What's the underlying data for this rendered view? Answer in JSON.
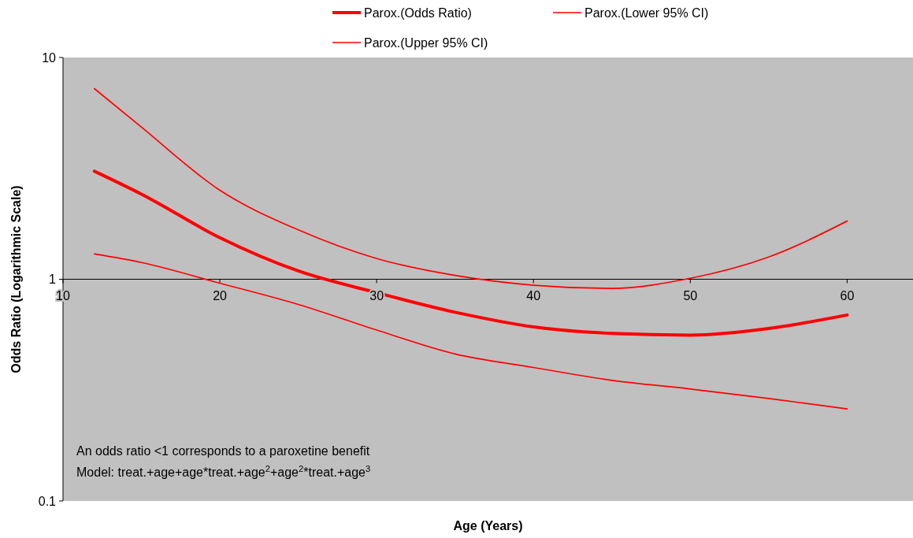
{
  "chart_data": {
    "type": "line",
    "xlabel": "Age (Years)",
    "ylabel": "Odds Ratio (Logarithmic Scale)",
    "log": "y",
    "grid": false,
    "legend": "top",
    "line_style": "solid",
    "xlim": [
      10,
      64.2
    ],
    "xticks": [
      10,
      20,
      30,
      40,
      50,
      60
    ],
    "ylim": [
      0.1,
      10
    ],
    "yticks": [
      0.1,
      1,
      10
    ],
    "x": [
      12,
      15,
      20,
      25,
      30,
      35,
      40,
      45,
      50,
      55,
      60
    ],
    "series": [
      {
        "name": "Parox.(Odds Ratio)",
        "color": "#ff0000",
        "values": [
          3.07,
          2.42,
          1.54,
          1.09,
          0.87,
          0.71,
          0.61,
          0.57,
          0.56,
          0.6,
          0.69
        ]
      },
      {
        "name": "Parox.(Lower 95% CI)",
        "color": "#ff0000",
        "values": [
          1.3,
          1.19,
          0.96,
          0.77,
          0.59,
          0.46,
          0.4,
          0.35,
          0.32,
          0.29,
          0.26
        ]
      },
      {
        "name": "Parox.(Upper 95% CI)",
        "color": "#ff0000",
        "values": [
          7.24,
          4.85,
          2.52,
          1.67,
          1.24,
          1.04,
          0.94,
          0.91,
          1.01,
          1.26,
          1.83
        ]
      }
    ],
    "annotations": [
      "An odds ratio <1 corresponds to a paroxetine benefit",
      "Model: treat.+age+age*treat.+age$^{2}$+age$^{2}$*treat.+age$^{3}$"
    ]
  }
}
